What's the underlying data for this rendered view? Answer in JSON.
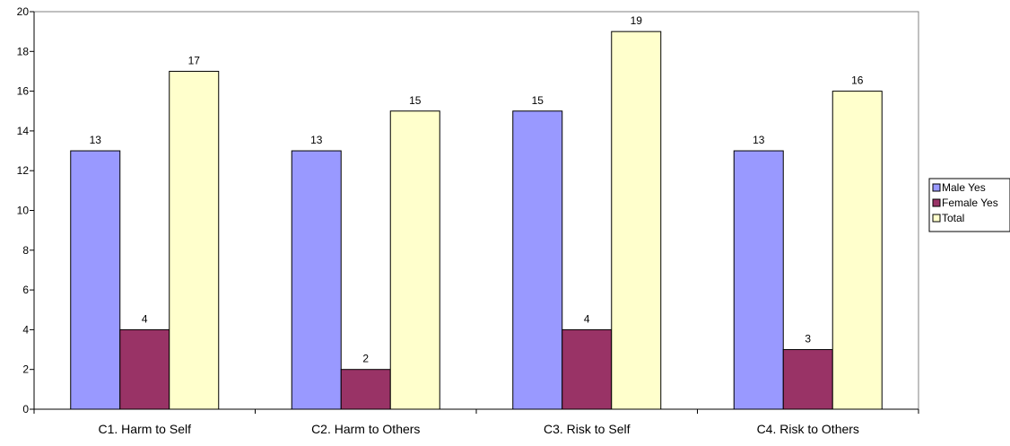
{
  "chart_data": {
    "type": "bar",
    "title": "",
    "xlabel": "",
    "ylabel": "",
    "ylim": [
      0,
      20
    ],
    "yticks": [
      0,
      2,
      4,
      6,
      8,
      10,
      12,
      14,
      16,
      18,
      20
    ],
    "grid": false,
    "legend_position": "right",
    "categories": [
      "C1. Harm to Self",
      "C2. Harm to Others",
      "C3. Risk to Self",
      "C4. Risk to Others"
    ],
    "series": [
      {
        "name": "Male Yes",
        "color": "#9999ff",
        "values": [
          13,
          13,
          15,
          13
        ]
      },
      {
        "name": "Female Yes",
        "color": "#993366",
        "values": [
          4,
          2,
          4,
          3
        ]
      },
      {
        "name": "Total",
        "color": "#ffffcc",
        "values": [
          17,
          15,
          19,
          16
        ]
      }
    ]
  }
}
